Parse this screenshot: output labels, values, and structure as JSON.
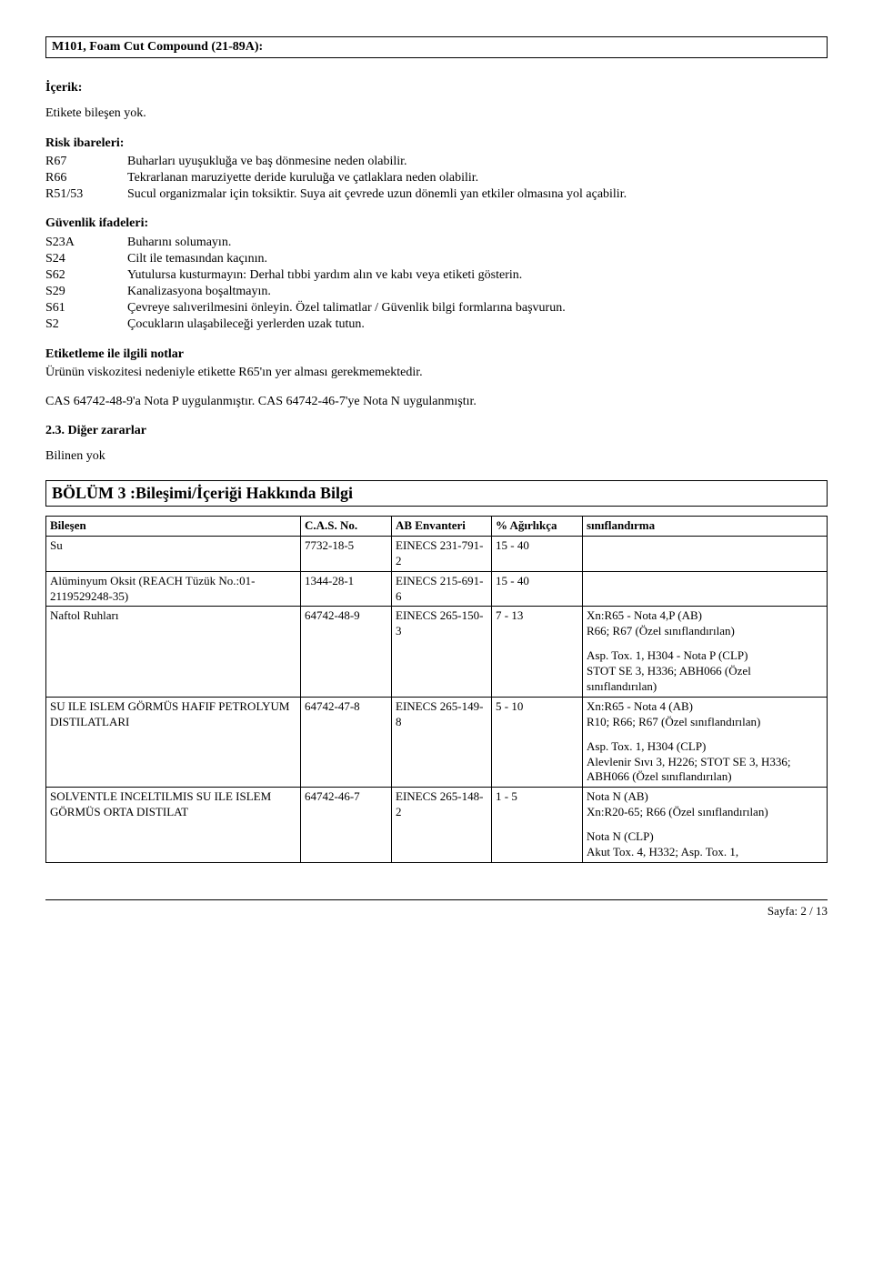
{
  "header": {
    "title": "M101, Foam Cut Compound (21-89A):"
  },
  "content": {
    "icerik_label": "İçerik:",
    "etikete": "Etikete bileşen yok.",
    "risk_label": "Risk ibareleri:",
    "risk": [
      {
        "code": "R67",
        "text": "Buharları uyuşukluğa ve baş dönmesine neden olabilir."
      },
      {
        "code": "R66",
        "text": "Tekrarlanan maruziyette deride kuruluğa ve çatlaklara neden olabilir."
      },
      {
        "code": "R51/53",
        "text": "Sucul organizmalar için toksiktir. Suya ait çevrede uzun dönemli yan etkiler olmasına yol açabilir."
      }
    ],
    "guvenlik_label": "Güvenlik ifadeleri:",
    "guvenlik": [
      {
        "code": "S23A",
        "text": "Buharını solumayın."
      },
      {
        "code": "S24",
        "text": "Cilt ile temasından kaçının."
      },
      {
        "code": "S62",
        "text": "Yutulursa kusturmayın: Derhal tıbbi yardım alın ve kabı veya etiketi gösterin."
      },
      {
        "code": "S29",
        "text": "Kanalizasyona boşaltmayın."
      },
      {
        "code": "S61",
        "text": "Çevreye salıverilmesini önleyin. Özel talimatlar / Güvenlik bilgi formlarına başvurun."
      },
      {
        "code": "S2",
        "text": "Çocukların ulaşabileceği yerlerden uzak tutun."
      }
    ],
    "etiketleme_title": "Etiketleme ile ilgili notlar",
    "etiketleme_text": "Ürünün viskozitesi nedeniyle etikette R65'ın  yer alması gerekmemektedir.",
    "cas_note": "CAS 64742-48-9'a Nota P uygulanmıştır. CAS 64742-46-7'ye Nota N uygulanmıştır.",
    "diger_title": "2.3. Diğer zararlar",
    "diger_text": "Bilinen yok",
    "bolum3_title": "BÖLÜM 3 :Bileşimi/İçeriği Hakkında Bilgi"
  },
  "table": {
    "headers": {
      "comp": "Bileşen",
      "cas": "C.A.S. No.",
      "ab": "AB Envanteri",
      "pct": "% Ağırlıkça",
      "class": "sınıflandırma"
    },
    "rows": [
      {
        "comp": "Su",
        "cas": "7732-18-5",
        "ab": "EINECS 231-791-2",
        "pct": " 15 -  40",
        "class_lines": []
      },
      {
        "comp": "Alüminyum Oksit (REACH Tüzük No.:01-2119529248-35)",
        "cas": "1344-28-1",
        "ab": "EINECS 215-691-6",
        "pct": " 15 -  40",
        "class_lines": []
      },
      {
        "comp": "Naftol Ruhları",
        "cas": "64742-48-9",
        "ab": "EINECS 265-150-3",
        "pct": " 7 -  13",
        "class_lines": [
          "Xn:R65 - Nota 4,P (AB)",
          "R66; R67 (Özel sınıflandırılan)"
        ],
        "class_block2": [
          "Asp. Tox. 1, H304 - Nota P (CLP)",
          "STOT SE 3, H336; ABH066 (Özel sınıflandırılan)"
        ]
      },
      {
        "comp": "SU ILE ISLEM GÖRMÜS HAFIF PETROLYUM DISTILATLARI",
        "cas": "64742-47-8",
        "ab": "EINECS 265-149-8",
        "pct": " 5 -  10",
        "class_lines": [
          "Xn:R65 - Nota 4 (AB)",
          "R10; R66; R67 (Özel sınıflandırılan)"
        ],
        "class_block2": [
          "Asp. Tox. 1, H304 (CLP)",
          "Alevlenir Sıvı 3, H226; STOT SE 3, H336; ABH066 (Özel sınıflandırılan)"
        ]
      },
      {
        "comp": "SOLVENTLE INCELTILMIS SU ILE ISLEM GÖRMÜS ORTA DISTILAT",
        "cas": "64742-46-7",
        "ab": "EINECS 265-148-2",
        "pct": " 1 -  5",
        "class_lines": [
          "Nota N (AB)",
          "Xn:R20-65; R66 (Özel sınıflandırılan)"
        ],
        "class_block2": [
          "Nota N (CLP)",
          "Akut Tox. 4, H332; Asp. Tox. 1,"
        ]
      }
    ]
  },
  "footer": {
    "page": "Sayfa: 2 /   13"
  }
}
